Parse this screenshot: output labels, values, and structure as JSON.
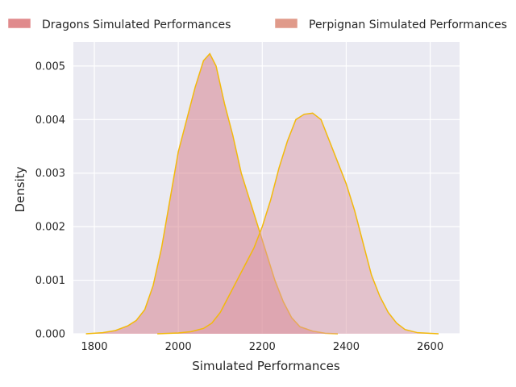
{
  "chart_data": {
    "type": "area",
    "title": "",
    "xlabel": "Simulated Performances",
    "ylabel": "Density",
    "xlim": [
      1750,
      2670
    ],
    "ylim": [
      0,
      0.00545
    ],
    "x_ticks": [
      1800,
      2000,
      2200,
      2400,
      2600
    ],
    "y_ticks": [
      0.0,
      0.001,
      0.002,
      0.003,
      0.004,
      0.005
    ],
    "y_tick_labels": [
      "0.000",
      "0.001",
      "0.002",
      "0.003",
      "0.004",
      "0.005"
    ],
    "grid": true,
    "legend_placement": "top",
    "line_color": "#f2b90c",
    "background_color": "#eaeaf2",
    "series": [
      {
        "name": "Dragons Simulated Performances",
        "fill_color": "#d67a86",
        "legend_color": "#e08a8c",
        "points": [
          [
            1780,
            0
          ],
          [
            1820,
            2e-05
          ],
          [
            1850,
            6e-05
          ],
          [
            1880,
            0.00015
          ],
          [
            1900,
            0.00025
          ],
          [
            1920,
            0.00045
          ],
          [
            1940,
            0.0009
          ],
          [
            1960,
            0.0016
          ],
          [
            1980,
            0.0025
          ],
          [
            2000,
            0.0034
          ],
          [
            2020,
            0.004
          ],
          [
            2040,
            0.0046
          ],
          [
            2060,
            0.0051
          ],
          [
            2075,
            0.00523
          ],
          [
            2090,
            0.005
          ],
          [
            2110,
            0.0043
          ],
          [
            2130,
            0.0037
          ],
          [
            2150,
            0.003
          ],
          [
            2170,
            0.0025
          ],
          [
            2190,
            0.002
          ],
          [
            2210,
            0.0015
          ],
          [
            2230,
            0.001
          ],
          [
            2250,
            0.0006
          ],
          [
            2270,
            0.0003
          ],
          [
            2290,
            0.00013
          ],
          [
            2320,
            5e-05
          ],
          [
            2350,
            1e-05
          ],
          [
            2380,
            0
          ]
        ]
      },
      {
        "name": "Perpignan Simulated Performances",
        "fill_color": "#dc9aa5",
        "legend_color": "#e09a8a",
        "points": [
          [
            1950,
            0
          ],
          [
            2000,
            1.5e-05
          ],
          [
            2030,
            4e-05
          ],
          [
            2060,
            0.0001
          ],
          [
            2080,
            0.0002
          ],
          [
            2100,
            0.0004
          ],
          [
            2120,
            0.0007
          ],
          [
            2140,
            0.001
          ],
          [
            2160,
            0.0013
          ],
          [
            2180,
            0.0016
          ],
          [
            2200,
            0.002
          ],
          [
            2220,
            0.0025
          ],
          [
            2240,
            0.0031
          ],
          [
            2260,
            0.0036
          ],
          [
            2280,
            0.004
          ],
          [
            2300,
            0.0041
          ],
          [
            2320,
            0.00412
          ],
          [
            2340,
            0.004
          ],
          [
            2360,
            0.0036
          ],
          [
            2380,
            0.0032
          ],
          [
            2400,
            0.0028
          ],
          [
            2420,
            0.0023
          ],
          [
            2440,
            0.0017
          ],
          [
            2460,
            0.0011
          ],
          [
            2480,
            0.0007
          ],
          [
            2500,
            0.0004
          ],
          [
            2520,
            0.0002
          ],
          [
            2540,
            8e-05
          ],
          [
            2570,
            2e-05
          ],
          [
            2620,
            0
          ]
        ]
      }
    ]
  }
}
